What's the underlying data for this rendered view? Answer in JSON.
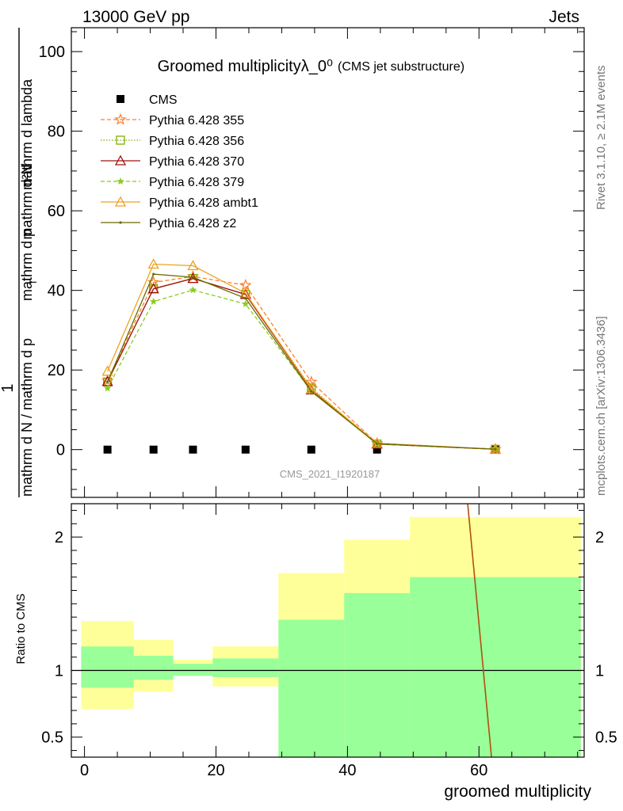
{
  "header": {
    "energy_label": "13000 GeV pp",
    "process_label": "Jets"
  },
  "side_labels": {
    "rivet": "Rivet 3.1.10, ≥ 2.1M events",
    "mcplots": "mcplots.cern.ch [arXiv:1306.3436]"
  },
  "watermark": "CMS_2021_I1920187",
  "chart_data": [
    {
      "type": "line",
      "title": "Groomed multiplicityλ_0⁰",
      "subtitle": "(CMS jet substructure)",
      "xlabel": "groomed multiplicity",
      "ylabel": "1 / mathrm d N / mathrm d p_T mathrm d N / mathrm d p_T mathrm d lambda",
      "ylabel_parts": {
        "numerator": "1",
        "denominator": "mathrm d N / mathrm d p",
        "right_num": "mathrm d²N",
        "right_den": "mathrm d p",
        "right_den_tail": "mathrm d lambda",
        "sub": "T"
      },
      "xlim": [
        -2,
        76
      ],
      "ylim": [
        -12,
        106
      ],
      "x_ticks": [
        0,
        20,
        40,
        60
      ],
      "y_ticks": [
        0,
        20,
        40,
        60,
        80,
        100
      ],
      "grid": false,
      "legend_position": "top-left",
      "x": [
        3.5,
        10.5,
        16.5,
        24.5,
        34.5,
        44.5,
        62.5
      ],
      "series": [
        {
          "name": "CMS",
          "color": "#000000",
          "style": "points",
          "marker": "square",
          "values": [
            0,
            0,
            0,
            0,
            0,
            0,
            0
          ]
        },
        {
          "name": "Pythia 6.428 355",
          "color": "#ff7f2a",
          "style": "dashed",
          "marker": "star-open",
          "values": [
            17.3,
            42.0,
            43.5,
            41.3,
            17.0,
            1.6,
            0.1
          ]
        },
        {
          "name": "Pythia 6.428 356",
          "color": "#7fb000",
          "style": "dotted",
          "marker": "square-open",
          "values": [
            17.0,
            40.5,
            43.0,
            39.0,
            15.5,
            1.4,
            0.1
          ]
        },
        {
          "name": "Pythia 6.428 370",
          "color": "#a01010",
          "style": "solid",
          "marker": "triangle-open",
          "values": [
            17.1,
            40.4,
            43.0,
            39.0,
            15.0,
            1.4,
            0.1
          ]
        },
        {
          "name": "Pythia 6.428 379",
          "color": "#88cc22",
          "style": "dashed",
          "marker": "star",
          "values": [
            15.4,
            37.2,
            40.1,
            36.6,
            14.7,
            1.4,
            0.1
          ]
        },
        {
          "name": "Pythia 6.428 ambt1",
          "color": "#f0a020",
          "style": "solid",
          "marker": "triangle-open",
          "values": [
            19.7,
            46.6,
            46.2,
            39.3,
            15.2,
            1.6,
            0.1
          ]
        },
        {
          "name": "Pythia 6.428 z2",
          "color": "#6b6b00",
          "style": "solid",
          "marker": "dot",
          "values": [
            17.0,
            44.1,
            43.3,
            38.0,
            14.6,
            1.5,
            0.1
          ]
        }
      ]
    },
    {
      "type": "area",
      "ylabel": "Ratio to CMS",
      "xlabel": "groomed multiplicity",
      "xlim": [
        -2,
        76
      ],
      "ylim": [
        0.35,
        2.25
      ],
      "y_ticks": [
        0.5,
        1,
        2
      ],
      "x_ticks": [
        0,
        20,
        40,
        60
      ],
      "reference_line": 1,
      "bins": [
        {
          "x_low": -0.5,
          "x_high": 7.5,
          "stat_low": 0.87,
          "stat_high": 1.18,
          "tot_low": 0.71,
          "tot_high": 1.37
        },
        {
          "x_low": 7.5,
          "x_high": 13.5,
          "stat_low": 0.93,
          "stat_high": 1.11,
          "tot_low": 0.84,
          "tot_high": 1.23
        },
        {
          "x_low": 13.5,
          "x_high": 19.5,
          "stat_low": 0.96,
          "stat_high": 1.05,
          "tot_low": 0.96,
          "tot_high": 1.08
        },
        {
          "x_low": 19.5,
          "x_high": 29.5,
          "stat_low": 0.95,
          "stat_high": 1.09,
          "tot_low": 0.88,
          "tot_high": 1.18
        },
        {
          "x_low": 29.5,
          "x_high": 39.5,
          "stat_low": 0.3,
          "stat_high": 1.38,
          "tot_low": 0.67,
          "tot_high": 1.73
        },
        {
          "x_low": 39.5,
          "x_high": 49.5,
          "stat_low": 0.3,
          "stat_high": 1.58,
          "tot_low": 0.44,
          "tot_high": 1.98
        },
        {
          "x_low": 49.5,
          "x_high": 75.5,
          "stat_low": 0.3,
          "stat_high": 1.7,
          "tot_low": 0.3,
          "tot_high": 2.15
        }
      ],
      "band_colors": {
        "stat": "#99ff99",
        "total": "#ffff99"
      },
      "ratio_line": {
        "color": "#b05010",
        "x": [
          58.0,
          62.0
        ],
        "y": [
          2.4,
          0.3
        ]
      }
    }
  ]
}
